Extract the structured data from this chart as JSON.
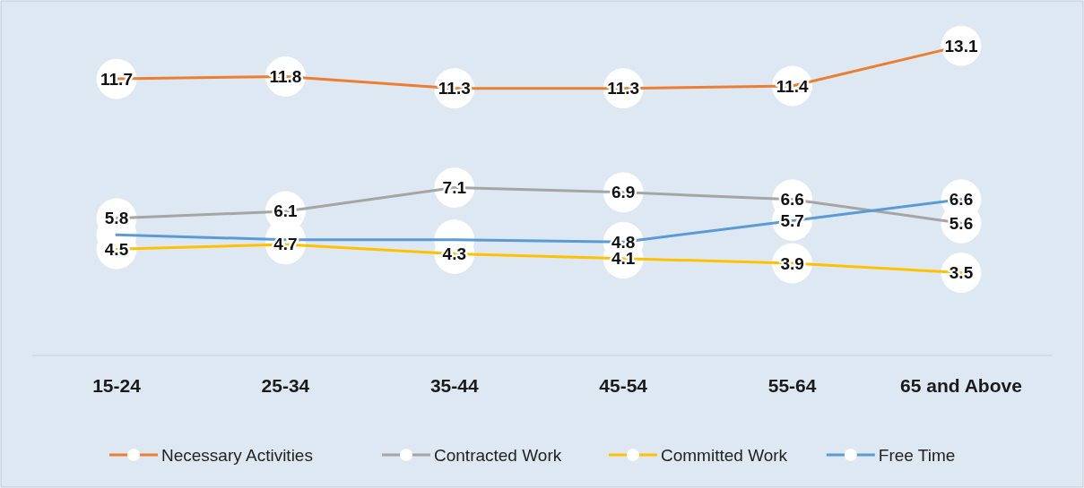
{
  "chart_data": {
    "type": "line",
    "categories": [
      "15-24",
      "25-34",
      "35-44",
      "45-54",
      "55-64",
      "65 and Above"
    ],
    "tick_labels": "x",
    "grid": false,
    "legend": "bottom",
    "marker": "circle",
    "data_labels": true,
    "series": [
      {
        "name": "Necessary Activities",
        "color": "#ed7d31",
        "values": [
          11.7,
          11.8,
          11.3,
          11.3,
          11.4,
          13.1
        ]
      },
      {
        "name": "Contracted Work",
        "color": "#a5a5a5",
        "values": [
          5.8,
          6.1,
          7.1,
          6.9,
          6.6,
          5.6
        ]
      },
      {
        "name": "Committed Work",
        "color": "#ffc000",
        "values": [
          4.5,
          4.7,
          4.3,
          4.1,
          3.9,
          3.5
        ]
      },
      {
        "name": "Free Time",
        "color": "#5b9bd5",
        "values": [
          5.1,
          4.9,
          4.9,
          4.8,
          5.7,
          6.6
        ],
        "value_labels": [
          null,
          null,
          null,
          "4.8",
          "5.7",
          "6.6"
        ]
      }
    ]
  }
}
